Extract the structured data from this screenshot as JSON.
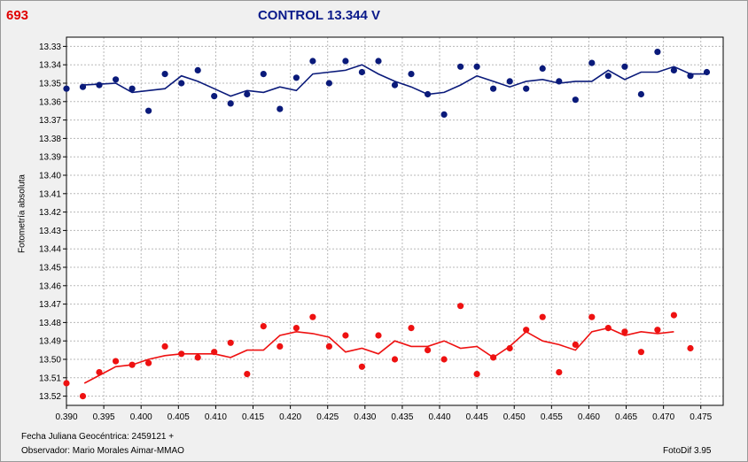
{
  "header": {
    "star_id": "693",
    "title": "CONTROL 13.344 V"
  },
  "footer": {
    "jd_text": "Fecha Juliana Geocéntrica: 2459121 +",
    "observer_text": "Observador: Mario Morales Aimar-MMAO",
    "software": "FotoDif 3.95"
  },
  "chart_data": {
    "type": "scatter",
    "title": "CONTROL 13.344 V",
    "xlabel": "",
    "ylabel": "Fotometría absoluta",
    "xlim": [
      0.39,
      0.478
    ],
    "ylim": [
      13.325,
      13.525
    ],
    "y_inverted": true,
    "grid": true,
    "x_ticks": [
      "0.390",
      "0.395",
      "0.400",
      "0.405",
      "0.410",
      "0.415",
      "0.420",
      "0.425",
      "0.430",
      "0.435",
      "0.440",
      "0.445",
      "0.450",
      "0.455",
      "0.460",
      "0.465",
      "0.470",
      "0.475"
    ],
    "y_ticks": [
      "13.33",
      "13.34",
      "13.35",
      "13.36",
      "13.37",
      "13.38",
      "13.39",
      "13.40",
      "13.41",
      "13.42",
      "13.43",
      "13.44",
      "13.45",
      "13.46",
      "13.47",
      "13.48",
      "13.49",
      "13.50",
      "13.51",
      "13.52"
    ],
    "series": [
      {
        "color": "#0a1a7a",
        "points": [
          [
            0.39,
            13.353
          ],
          [
            0.3922,
            13.352
          ],
          [
            0.3944,
            13.351
          ],
          [
            0.3966,
            13.348
          ],
          [
            0.3988,
            13.353
          ],
          [
            0.401,
            13.365
          ],
          [
            0.4032,
            13.345
          ],
          [
            0.4054,
            13.35
          ],
          [
            0.4076,
            13.343
          ],
          [
            0.4098,
            13.357
          ],
          [
            0.412,
            13.361
          ],
          [
            0.4142,
            13.356
          ],
          [
            0.4164,
            13.345
          ],
          [
            0.4186,
            13.364
          ],
          [
            0.4208,
            13.347
          ],
          [
            0.423,
            13.338
          ],
          [
            0.4252,
            13.35
          ],
          [
            0.4274,
            13.338
          ],
          [
            0.4296,
            13.344
          ],
          [
            0.4318,
            13.338
          ],
          [
            0.434,
            13.351
          ],
          [
            0.4362,
            13.345
          ],
          [
            0.4384,
            13.356
          ],
          [
            0.4406,
            13.367
          ],
          [
            0.4428,
            13.341
          ],
          [
            0.445,
            13.341
          ],
          [
            0.4472,
            13.353
          ],
          [
            0.4494,
            13.349
          ],
          [
            0.4516,
            13.353
          ],
          [
            0.4538,
            13.342
          ],
          [
            0.456,
            13.349
          ],
          [
            0.4582,
            13.359
          ],
          [
            0.4604,
            13.339
          ],
          [
            0.4626,
            13.346
          ],
          [
            0.4648,
            13.341
          ],
          [
            0.467,
            13.356
          ],
          [
            0.4692,
            13.333
          ],
          [
            0.4714,
            13.343
          ],
          [
            0.4736,
            13.346
          ],
          [
            0.4758,
            13.344
          ]
        ],
        "smooth": [
          [
            0.3922,
            13.351
          ],
          [
            0.3966,
            13.35
          ],
          [
            0.3988,
            13.355
          ],
          [
            0.401,
            13.354
          ],
          [
            0.4032,
            13.353
          ],
          [
            0.4054,
            13.346
          ],
          [
            0.4076,
            13.349
          ],
          [
            0.4098,
            13.353
          ],
          [
            0.412,
            13.357
          ],
          [
            0.4142,
            13.354
          ],
          [
            0.4164,
            13.355
          ],
          [
            0.4186,
            13.352
          ],
          [
            0.4208,
            13.354
          ],
          [
            0.423,
            13.345
          ],
          [
            0.4252,
            13.344
          ],
          [
            0.4274,
            13.343
          ],
          [
            0.4296,
            13.34
          ],
          [
            0.4318,
            13.345
          ],
          [
            0.434,
            13.349
          ],
          [
            0.4362,
            13.352
          ],
          [
            0.4384,
            13.356
          ],
          [
            0.4406,
            13.355
          ],
          [
            0.4428,
            13.351
          ],
          [
            0.445,
            13.346
          ],
          [
            0.4472,
            13.349
          ],
          [
            0.4494,
            13.352
          ],
          [
            0.4516,
            13.349
          ],
          [
            0.4538,
            13.348
          ],
          [
            0.456,
            13.35
          ],
          [
            0.4582,
            13.349
          ],
          [
            0.4604,
            13.349
          ],
          [
            0.4626,
            13.343
          ],
          [
            0.4648,
            13.348
          ],
          [
            0.467,
            13.344
          ],
          [
            0.4692,
            13.344
          ],
          [
            0.4714,
            13.341
          ],
          [
            0.4736,
            13.345
          ],
          [
            0.4758,
            13.345
          ]
        ]
      },
      {
        "color": "#ee1111",
        "points": [
          [
            0.39,
            13.513
          ],
          [
            0.3922,
            13.52
          ],
          [
            0.3944,
            13.507
          ],
          [
            0.3966,
            13.501
          ],
          [
            0.3988,
            13.503
          ],
          [
            0.401,
            13.502
          ],
          [
            0.4032,
            13.493
          ],
          [
            0.4054,
            13.497
          ],
          [
            0.4076,
            13.499
          ],
          [
            0.4098,
            13.496
          ],
          [
            0.412,
            13.491
          ],
          [
            0.4142,
            13.508
          ],
          [
            0.4164,
            13.482
          ],
          [
            0.4186,
            13.493
          ],
          [
            0.4208,
            13.483
          ],
          [
            0.423,
            13.477
          ],
          [
            0.4252,
            13.493
          ],
          [
            0.4274,
            13.487
          ],
          [
            0.4296,
            13.504
          ],
          [
            0.4318,
            13.487
          ],
          [
            0.434,
            13.5
          ],
          [
            0.4362,
            13.483
          ],
          [
            0.4384,
            13.495
          ],
          [
            0.4406,
            13.5
          ],
          [
            0.4428,
            13.471
          ],
          [
            0.445,
            13.508
          ],
          [
            0.4472,
            13.499
          ],
          [
            0.4494,
            13.494
          ],
          [
            0.4516,
            13.484
          ],
          [
            0.4538,
            13.477
          ],
          [
            0.456,
            13.507
          ],
          [
            0.4582,
            13.492
          ],
          [
            0.4604,
            13.477
          ],
          [
            0.4626,
            13.483
          ],
          [
            0.4648,
            13.485
          ],
          [
            0.467,
            13.496
          ],
          [
            0.4692,
            13.484
          ],
          [
            0.4714,
            13.476
          ],
          [
            0.4736,
            13.494
          ]
        ],
        "smooth": [
          [
            0.3924,
            13.513
          ],
          [
            0.3966,
            13.504
          ],
          [
            0.3988,
            13.503
          ],
          [
            0.401,
            13.5
          ],
          [
            0.4032,
            13.498
          ],
          [
            0.4054,
            13.497
          ],
          [
            0.4076,
            13.497
          ],
          [
            0.4098,
            13.497
          ],
          [
            0.412,
            13.499
          ],
          [
            0.4142,
            13.495
          ],
          [
            0.4164,
            13.495
          ],
          [
            0.4186,
            13.487
          ],
          [
            0.4208,
            13.485
          ],
          [
            0.423,
            13.486
          ],
          [
            0.4252,
            13.488
          ],
          [
            0.4274,
            13.496
          ],
          [
            0.4296,
            13.494
          ],
          [
            0.4318,
            13.497
          ],
          [
            0.434,
            13.49
          ],
          [
            0.4362,
            13.493
          ],
          [
            0.4384,
            13.493
          ],
          [
            0.4406,
            13.49
          ],
          [
            0.4428,
            13.494
          ],
          [
            0.445,
            13.493
          ],
          [
            0.4472,
            13.499
          ],
          [
            0.4494,
            13.493
          ],
          [
            0.4516,
            13.485
          ],
          [
            0.4538,
            13.49
          ],
          [
            0.456,
            13.492
          ],
          [
            0.4582,
            13.495
          ],
          [
            0.4604,
            13.485
          ],
          [
            0.4626,
            13.483
          ],
          [
            0.4648,
            13.487
          ],
          [
            0.467,
            13.485
          ],
          [
            0.4692,
            13.486
          ],
          [
            0.4714,
            13.485
          ]
        ]
      }
    ]
  }
}
